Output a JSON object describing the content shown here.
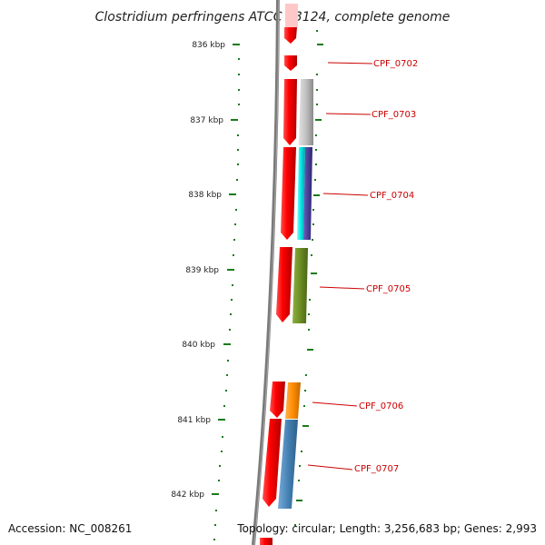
{
  "title": "Clostridium perfringens ATCC 13124, complete genome",
  "accession": "Accession: NC_008261",
  "summary": "Topology: circular; Length: 3,256,683 bp; Genes: 2,993",
  "scale_ticks": [
    "836 kbp",
    "837 kbp",
    "838 kbp",
    "839 kbp",
    "840 kbp",
    "841 kbp",
    "842 kbp"
  ],
  "genes": [
    "CPF_0702",
    "CPF_0703",
    "CPF_0704",
    "CPF_0705",
    "CPF_0706",
    "CPF_0707"
  ],
  "colors": {
    "backbone": "#808080",
    "forward_gene": "#ff0000",
    "tick": "#1a7a1a",
    "label": "#cc0000",
    "cog_gray": "#c0c0c0",
    "cog_cyan": "#00e5e5",
    "cog_navy": "#4a3f96",
    "cog_olive": "#6b8e23",
    "cog_orange": "#ff8c00",
    "cog_steelblue": "#4682b4"
  }
}
